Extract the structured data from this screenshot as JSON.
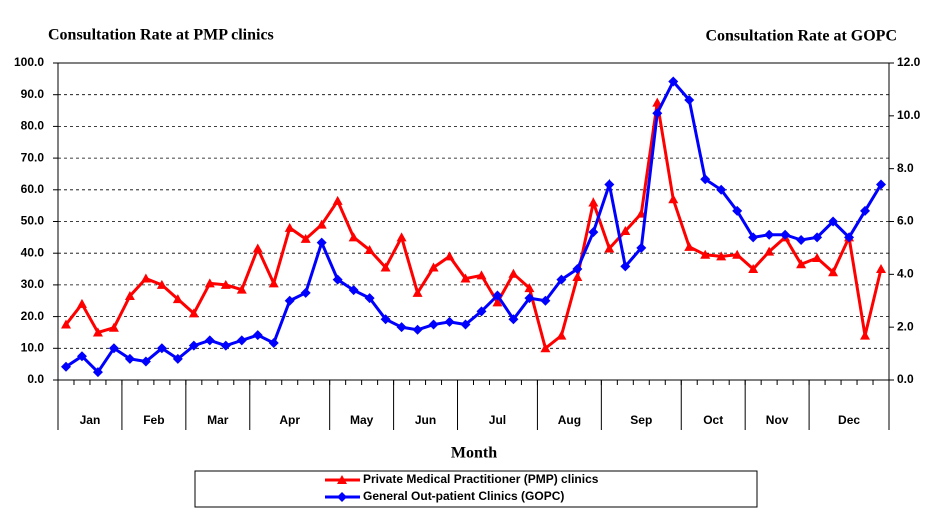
{
  "chart_data": {
    "type": "line",
    "title": "Consultation Rate at PMP clinics",
    "title_right": "Consultation Rate at GOPC",
    "xlabel": "Month",
    "categories": [
      "Jan",
      null,
      null,
      null,
      "Feb",
      null,
      null,
      null,
      "Mar",
      null,
      null,
      null,
      "Apr",
      null,
      null,
      null,
      null,
      "May",
      null,
      null,
      null,
      "Jun",
      null,
      null,
      null,
      "Jul",
      null,
      null,
      null,
      null,
      "Aug",
      null,
      null,
      null,
      "Sep",
      null,
      null,
      null,
      null,
      "Oct",
      null,
      null,
      null,
      "Nov",
      null,
      null,
      null,
      "Dec",
      null,
      null,
      null,
      null
    ],
    "series": [
      {
        "name": "Private Medical Practitioner (PMP) clinics",
        "color": "#ff0000",
        "marker": "triangle",
        "values": [
          17.5,
          24,
          15,
          16.5,
          26.5,
          32,
          30,
          25.5,
          21,
          30.5,
          30,
          28.5,
          41.5,
          30.5,
          48,
          44.5,
          49,
          56.5,
          45,
          41,
          35.5,
          45,
          27.5,
          35.5,
          39,
          32,
          33,
          24.5,
          33.5,
          29,
          10,
          14,
          32.5,
          56,
          41.5,
          47,
          52.5,
          87.5,
          57,
          42,
          39.5,
          39,
          39.5,
          35,
          40.5,
          45,
          36.5,
          38.5,
          34,
          45,
          14,
          35
        ]
      },
      {
        "name": "General Out-patient Clinics (GOPC)",
        "color": "#0000ff",
        "marker": "diamond",
        "axis": "y2",
        "values": [
          0.5,
          0.9,
          0.3,
          1.2,
          0.8,
          0.7,
          1.2,
          0.8,
          1.3,
          1.5,
          1.3,
          1.5,
          1.7,
          1.4,
          3.0,
          3.3,
          5.2,
          3.8,
          3.4,
          3.1,
          2.3,
          2.0,
          1.9,
          2.1,
          2.2,
          2.1,
          2.6,
          3.2,
          2.3,
          3.1,
          3.0,
          3.8,
          4.2,
          5.6,
          7.4,
          4.3,
          5.0,
          10.1,
          11.3,
          10.6,
          7.6,
          7.2,
          6.4,
          5.4,
          5.5,
          5.5,
          5.3,
          5.4,
          6.0,
          5.4,
          6.4,
          7.4
        ]
      }
    ],
    "ylim": [
      0,
      100
    ],
    "yticks": [
      {
        "value": 0,
        "label": "0.0"
      },
      {
        "value": 10,
        "label": "10.0"
      },
      {
        "value": 20,
        "label": "20.0"
      },
      {
        "value": 30,
        "label": "30.0"
      },
      {
        "value": 40,
        "label": "40.0"
      },
      {
        "value": 50,
        "label": "50.0"
      },
      {
        "value": 60,
        "label": "60.0"
      },
      {
        "value": 70,
        "label": "70.0"
      },
      {
        "value": 80,
        "label": "80.0"
      },
      {
        "value": 90,
        "label": "90.0"
      },
      {
        "value": 100,
        "label": "100.0"
      }
    ],
    "y2lim": [
      0,
      12
    ],
    "y2ticks": [
      {
        "value": 0,
        "label": "0.0"
      },
      {
        "value": 2,
        "label": "2.0"
      },
      {
        "value": 4,
        "label": "4.0"
      },
      {
        "value": 6,
        "label": "6.0"
      },
      {
        "value": 8,
        "label": "8.0"
      },
      {
        "value": 10,
        "label": "10.0"
      },
      {
        "value": 12,
        "label": "12.0"
      }
    ],
    "grid": true,
    "legend": "bottom"
  }
}
